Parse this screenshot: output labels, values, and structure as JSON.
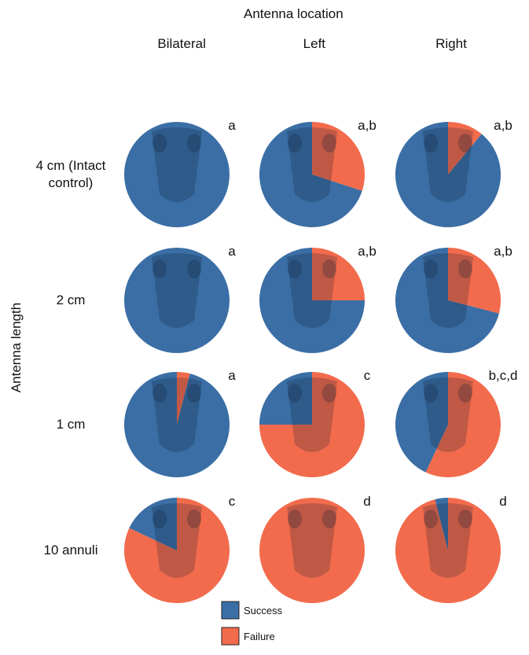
{
  "chart_data": {
    "type": "pie",
    "title": "Antenna location",
    "row_axis_label": "Antenna length",
    "columns": [
      "Bilateral",
      "Left",
      "Right"
    ],
    "rows": [
      "4 cm (Intact control)",
      "2 cm",
      "1 cm",
      "10 annuli"
    ],
    "series": [
      {
        "name": "Success",
        "color": "#3a6ea5"
      },
      {
        "name": "Failure",
        "color": "#f26b4c"
      }
    ],
    "cells": [
      [
        {
          "values": [
            100,
            0
          ],
          "label": "a"
        },
        {
          "values": [
            70,
            30
          ],
          "label": "a,b"
        },
        {
          "values": [
            89,
            11
          ],
          "label": "a,b"
        }
      ],
      [
        {
          "values": [
            100,
            0
          ],
          "label": "a"
        },
        {
          "values": [
            75,
            25
          ],
          "label": "a,b"
        },
        {
          "values": [
            71,
            29
          ],
          "label": "a,b"
        }
      ],
      [
        {
          "values": [
            96,
            4
          ],
          "label": "a"
        },
        {
          "values": [
            25,
            75
          ],
          "label": "c"
        },
        {
          "values": [
            43,
            57
          ],
          "label": "b,c,d"
        }
      ],
      [
        {
          "values": [
            18,
            82
          ],
          "label": "c"
        },
        {
          "values": [
            0,
            100
          ],
          "label": "d"
        },
        {
          "values": [
            4,
            96
          ],
          "label": "d"
        }
      ]
    ]
  }
}
